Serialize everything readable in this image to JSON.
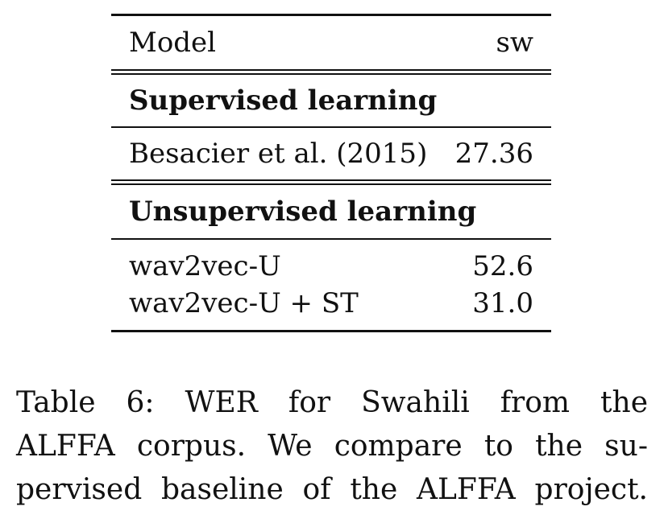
{
  "table": {
    "header": {
      "model": "Model",
      "lang": "sw"
    },
    "sections": [
      {
        "title": "Supervised learning",
        "rows": [
          {
            "model": "Besacier et al. (2015)",
            "value": "27.36"
          }
        ]
      },
      {
        "title": "Unsupervised learning",
        "rows": [
          {
            "model": "wav2vec-U",
            "value": "52.6"
          },
          {
            "model": "wav2vec-U + ST",
            "value": "31.0"
          }
        ]
      }
    ]
  },
  "caption": {
    "line1": "Table 6:  WER for Swahili from the",
    "line2": "ALFFA corpus.  We compare to the su-",
    "line3": "pervised baseline of the ALFFA project."
  }
}
